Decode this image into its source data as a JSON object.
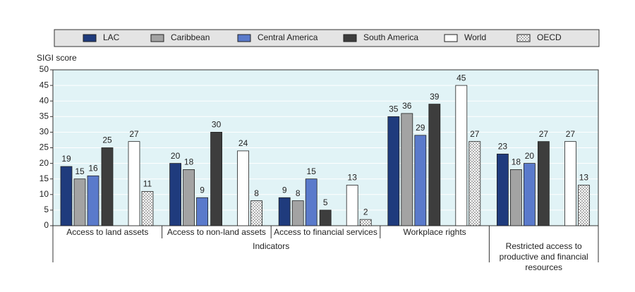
{
  "chart_data": {
    "type": "bar",
    "y_label": "SIGI score",
    "category_groups": [
      "Indicators",
      "Restricted access to productive and financial resources"
    ],
    "categories": [
      "Access to land assets",
      "Access to non-land assets",
      "Access to financial services",
      "Workplace rights",
      ""
    ],
    "series": [
      {
        "name": "LAC",
        "color": "#1f3b7d",
        "values": [
          19,
          20,
          9,
          35,
          23
        ]
      },
      {
        "name": "Caribbean",
        "color": "#a3a3a3",
        "values": [
          15,
          18,
          8,
          36,
          18
        ]
      },
      {
        "name": "Central America",
        "color": "#5a7acb",
        "values": [
          16,
          9,
          15,
          29,
          20
        ]
      },
      {
        "name": "South America",
        "color": "#3d3d3d",
        "values": [
          25,
          30,
          5,
          39,
          27
        ]
      },
      {
        "name": "World",
        "color": "#ffffff",
        "values": [
          27,
          24,
          13,
          45,
          27
        ]
      },
      {
        "name": "OECD",
        "color": "#ffffff",
        "pattern": "dots",
        "values": [
          11,
          8,
          2,
          27,
          13
        ]
      }
    ],
    "ylim": [
      0,
      50
    ],
    "yticks": [
      0,
      5,
      10,
      15,
      20,
      25,
      30,
      35,
      40,
      45,
      50
    ],
    "grid": true
  }
}
